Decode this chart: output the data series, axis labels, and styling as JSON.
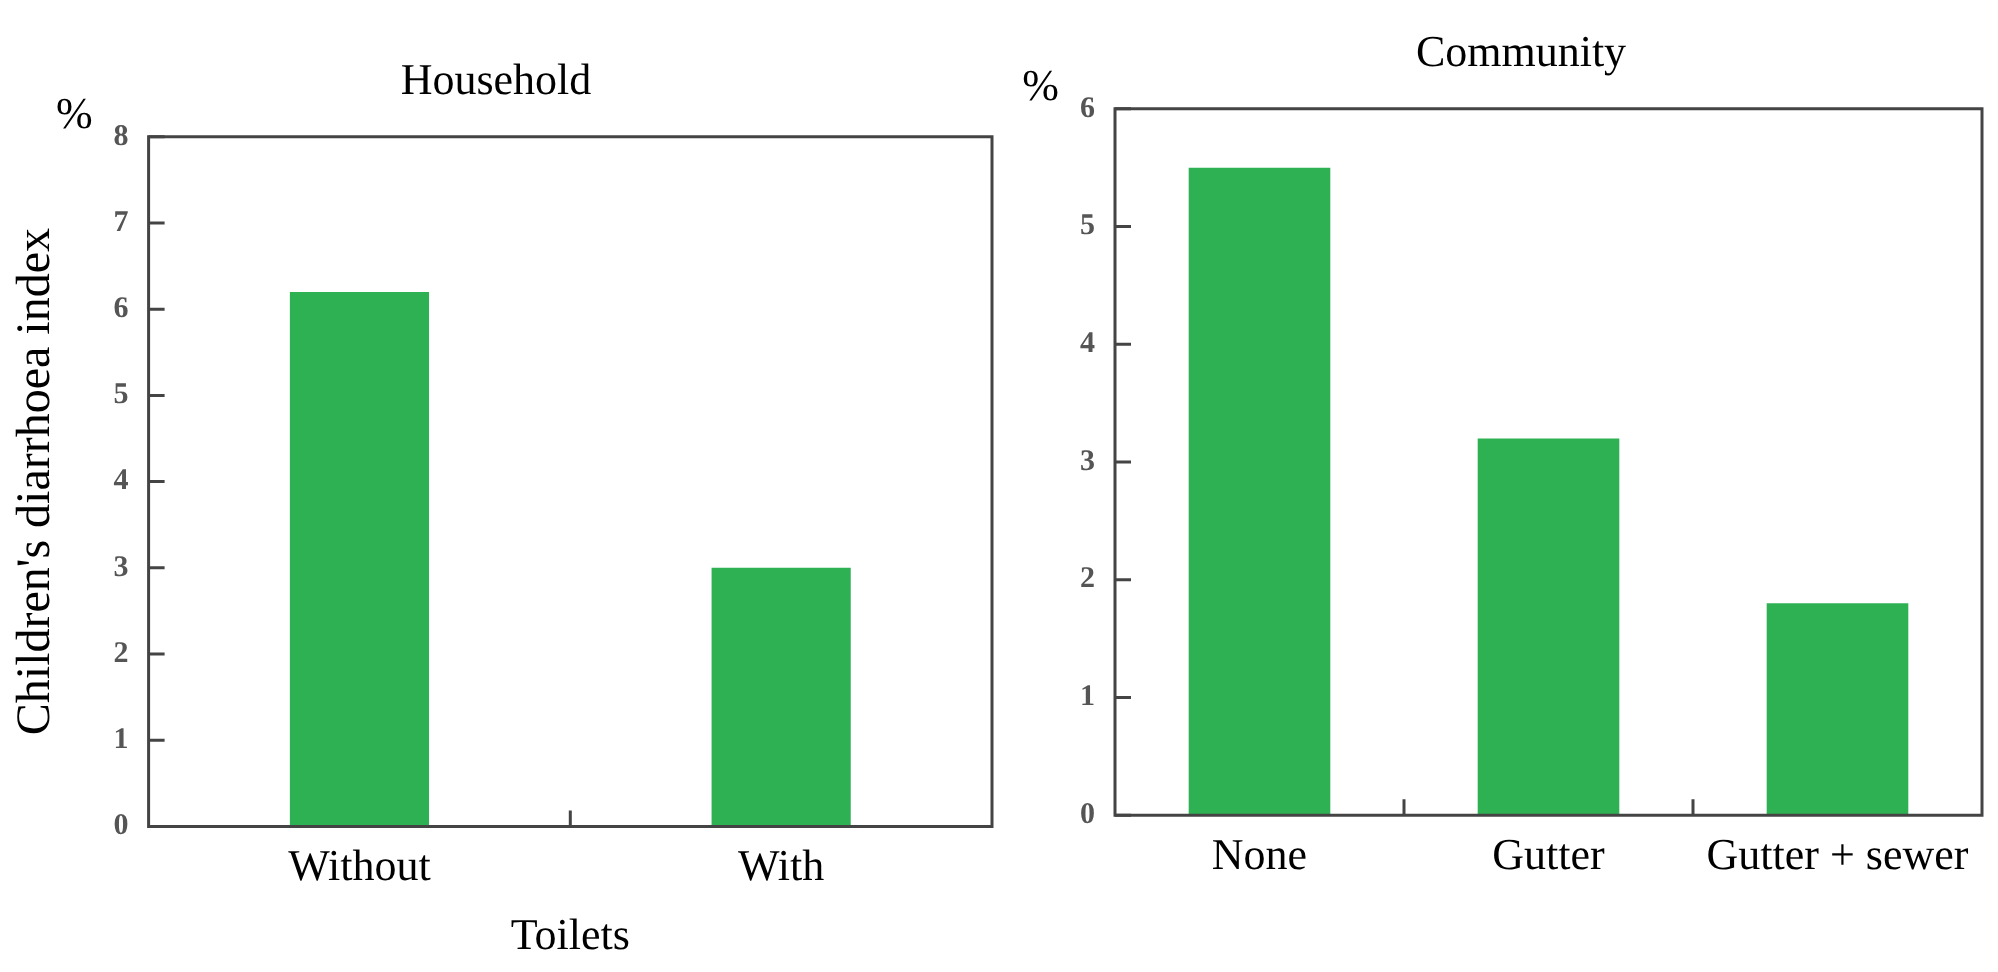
{
  "chart_data": [
    {
      "type": "bar",
      "title": "Household",
      "categories": [
        "Without",
        "With"
      ],
      "values": [
        6.2,
        3.0
      ],
      "color": "#2eb153",
      "xlabel": "Toilets",
      "ylabel": "Children's diarrhoea index",
      "ylim": [
        0,
        8
      ],
      "yticks": [
        0,
        1,
        2,
        3,
        4,
        5,
        6,
        7,
        8
      ],
      "grid": false,
      "legend": false,
      "annotations": [
        "%"
      ]
    },
    {
      "type": "bar",
      "title": "Community",
      "categories": [
        "None",
        "Gutter",
        "Gutter + sewer"
      ],
      "values": [
        5.5,
        3.2,
        1.8
      ],
      "color": "#2eb153",
      "ylim": [
        0,
        6
      ],
      "yticks": [
        0,
        1,
        2,
        3,
        4,
        5,
        6
      ],
      "grid": false,
      "legend": false,
      "annotations": [
        "%"
      ]
    }
  ]
}
